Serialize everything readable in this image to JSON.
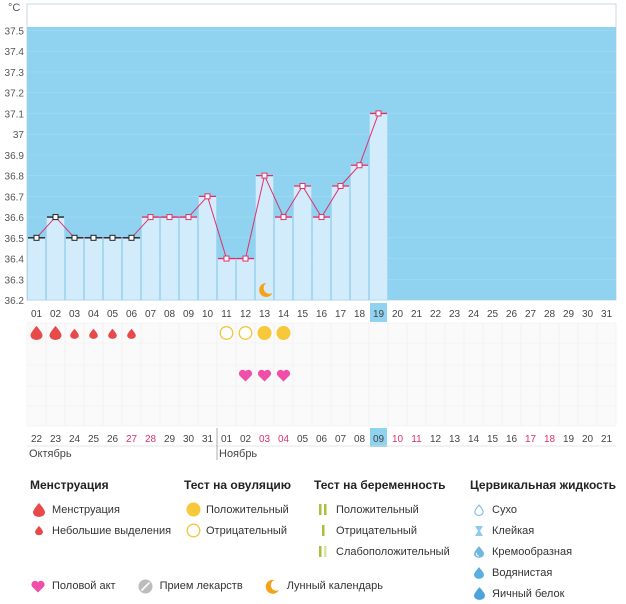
{
  "chart_data": {
    "type": "line",
    "unit_label": "°C",
    "y_ticks": [
      "36.2",
      "36.3",
      "36.4",
      "36.5",
      "36.6",
      "36.7",
      "36.8",
      "36.9",
      "37",
      "37.1",
      "37.2",
      "37.3",
      "37.4",
      "37.5"
    ],
    "ylim": [
      36.2,
      37.5
    ],
    "cycle_days": [
      "01",
      "02",
      "03",
      "04",
      "05",
      "06",
      "07",
      "08",
      "09",
      "10",
      "11",
      "12",
      "13",
      "14",
      "15",
      "16",
      "17",
      "18",
      "19",
      "20",
      "21",
      "22",
      "23",
      "24",
      "25",
      "26",
      "27",
      "28",
      "29",
      "30",
      "31"
    ],
    "temperatures": [
      36.5,
      36.6,
      36.5,
      36.5,
      36.5,
      36.5,
      36.6,
      36.6,
      36.6,
      36.7,
      36.4,
      36.4,
      36.8,
      36.6,
      36.75,
      36.6,
      36.75,
      36.85,
      37.1
    ],
    "black_markers_until": 6,
    "current_day_index": 18,
    "calendar_dates": [
      "22",
      "23",
      "24",
      "25",
      "26",
      "27",
      "28",
      "29",
      "30",
      "31",
      "01",
      "02",
      "03",
      "04",
      "05",
      "06",
      "07",
      "08",
      "09",
      "10",
      "11",
      "12",
      "13",
      "14",
      "15",
      "16",
      "17",
      "18",
      "19",
      "20",
      "21"
    ],
    "weekend_indices": [
      5,
      6,
      12,
      13,
      19,
      20,
      26,
      27
    ],
    "months": [
      {
        "name": "Октябрь",
        "start_index": 0
      },
      {
        "name": "Ноябрь",
        "start_index": 10
      }
    ],
    "menstruation": [
      {
        "day_index": 0,
        "kind": "big"
      },
      {
        "day_index": 1,
        "kind": "big"
      },
      {
        "day_index": 2,
        "kind": "small"
      },
      {
        "day_index": 3,
        "kind": "small"
      },
      {
        "day_index": 4,
        "kind": "small"
      },
      {
        "day_index": 5,
        "kind": "small"
      }
    ],
    "ovulation_tests": [
      {
        "day_index": 10,
        "result": "negative"
      },
      {
        "day_index": 11,
        "result": "negative"
      },
      {
        "day_index": 12,
        "result": "positive"
      },
      {
        "day_index": 13,
        "result": "positive"
      }
    ],
    "intercourse_days": [
      11,
      12,
      13
    ],
    "moon_day_index": 12
  },
  "colors": {
    "sky": "#8fd3f0",
    "bar_fill": "#d2ecfb",
    "bar_stroke": "#9fd4f0",
    "line": "#e0306a",
    "blood": "#e84a4a",
    "ovu_pos": "#f7c93a",
    "ovu_neg": "#f2c53a",
    "heart": "#f04ea8",
    "moon": "#f5a11a",
    "weekend": "#e0306a",
    "today_box": "#8fd3f0"
  },
  "legend": {
    "menstruation": {
      "title": "Менструация",
      "items": [
        {
          "label": "Менструация",
          "icon": "blood-drop-big-icon"
        },
        {
          "label": "Небольшие выделения",
          "icon": "blood-drop-small-icon"
        }
      ]
    },
    "ovulation": {
      "title": "Тест на овуляцию",
      "items": [
        {
          "label": "Положительный",
          "icon": "filled-circle-icon"
        },
        {
          "label": "Отрицательный",
          "icon": "empty-circle-icon"
        }
      ]
    },
    "pregnancy": {
      "title": "Тест на беременность",
      "items": [
        {
          "label": "Положительный",
          "icon": "two-stripes-icon"
        },
        {
          "label": "Отрицательный",
          "icon": "one-stripe-icon"
        },
        {
          "label": "Слабоположительный",
          "icon": "faint-stripe-icon"
        }
      ]
    },
    "cervical": {
      "title": "Цервикальная жидкость",
      "items": [
        {
          "label": "Сухо",
          "icon": "dry-drop-icon"
        },
        {
          "label": "Клейкая",
          "icon": "sticky-icon"
        },
        {
          "label": "Кремообразная",
          "icon": "creamy-drop-icon"
        },
        {
          "label": "Водянистая",
          "icon": "watery-drop-icon"
        },
        {
          "label": "Яичный белок",
          "icon": "eggwhite-drop-icon"
        }
      ]
    },
    "bottom": [
      {
        "label": "Половой акт",
        "icon": "heart-icon"
      },
      {
        "label": "Прием лекарств",
        "icon": "pill-icon"
      },
      {
        "label": "Лунный календарь",
        "icon": "moon-icon"
      }
    ]
  }
}
